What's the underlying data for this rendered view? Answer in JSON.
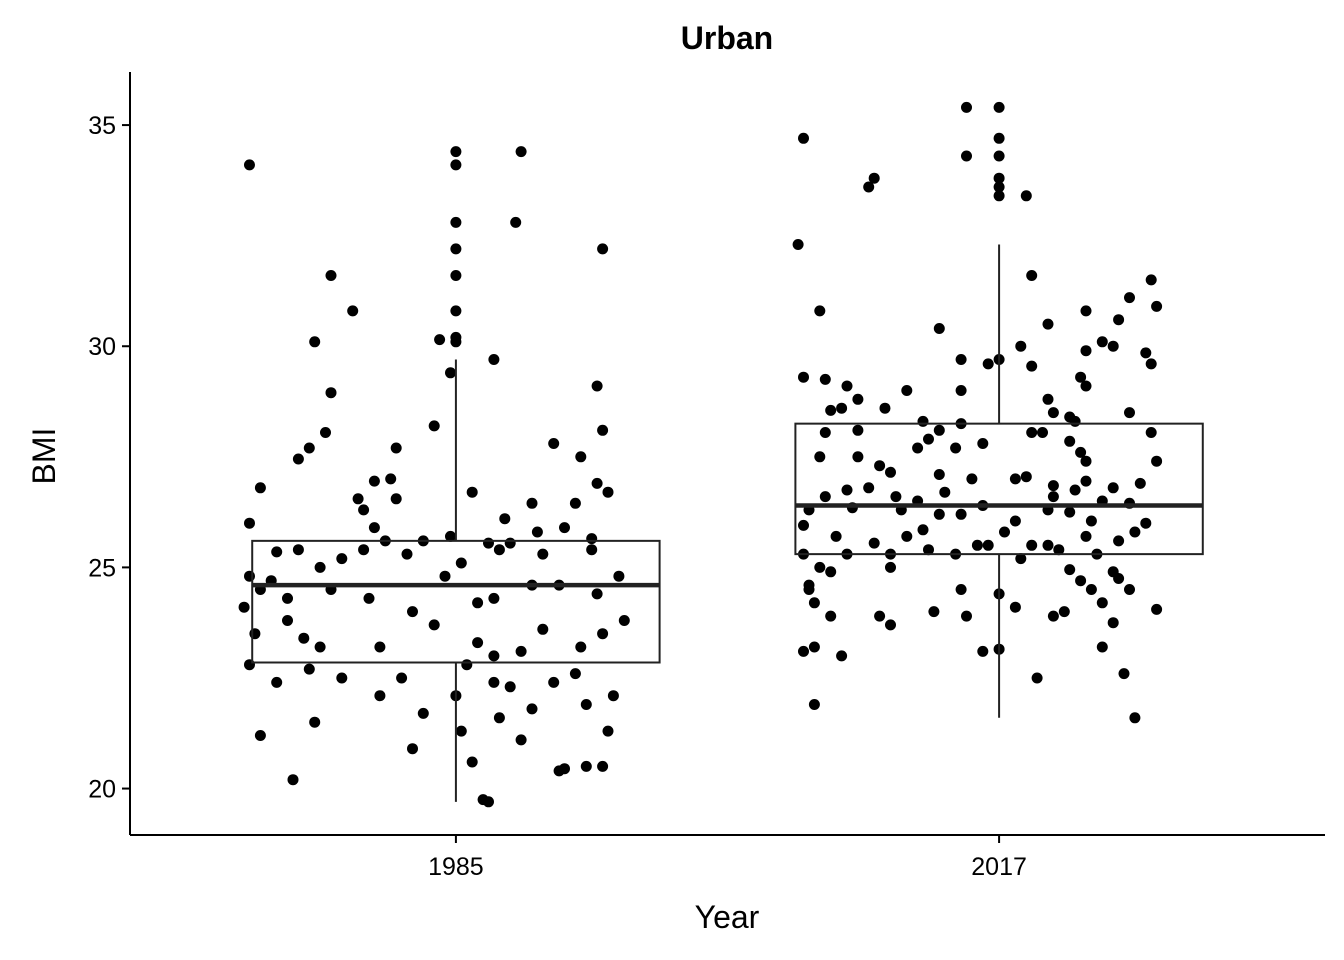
{
  "chart_data": {
    "type": "box+jitter",
    "title": "Urban",
    "xlabel": "Year",
    "ylabel": "BMI",
    "categories": [
      "1985",
      "2017"
    ],
    "ylim": [
      18.95,
      36.2
    ],
    "yticks": [
      20,
      25,
      30,
      35
    ],
    "grid": false,
    "legend": "none",
    "colors": {
      "points": "#000000",
      "box": "#222222"
    },
    "boxes": [
      {
        "category": "1985",
        "q1": 22.85,
        "median": 24.6,
        "q3": 25.6,
        "whisker_low": 19.7,
        "whisker_high": 29.7
      },
      {
        "category": "2017",
        "q1": 25.3,
        "median": 26.4,
        "q3": 28.25,
        "whisker_low": 21.6,
        "whisker_high": 32.3
      }
    ],
    "points": [
      {
        "x": 1.0,
        "y": 34.4
      },
      {
        "x": 1.0,
        "y": 34.1
      },
      {
        "x": 1.0,
        "y": 32.8
      },
      {
        "x": 1.0,
        "y": 32.2
      },
      {
        "x": 1.0,
        "y": 31.6
      },
      {
        "x": 1.0,
        "y": 30.8
      },
      {
        "x": 1.0,
        "y": 30.2
      },
      {
        "x": 1.0,
        "y": 30.1
      },
      {
        "x": 0.62,
        "y": 34.1
      },
      {
        "x": 1.12,
        "y": 34.4
      },
      {
        "x": 1.11,
        "y": 32.8
      },
      {
        "x": 1.27,
        "y": 32.2
      },
      {
        "x": 0.77,
        "y": 31.6
      },
      {
        "x": 0.81,
        "y": 30.8
      },
      {
        "x": 0.74,
        "y": 30.1
      },
      {
        "x": 0.97,
        "y": 30.15
      },
      {
        "x": 0.99,
        "y": 29.4
      },
      {
        "x": 1.07,
        "y": 29.7
      },
      {
        "x": 1.26,
        "y": 29.1
      },
      {
        "x": 0.77,
        "y": 28.95
      },
      {
        "x": 0.96,
        "y": 28.2
      },
      {
        "x": 1.27,
        "y": 28.1
      },
      {
        "x": 0.73,
        "y": 27.7
      },
      {
        "x": 0.71,
        "y": 27.45
      },
      {
        "x": 0.76,
        "y": 28.05
      },
      {
        "x": 0.89,
        "y": 27.7
      },
      {
        "x": 1.18,
        "y": 27.8
      },
      {
        "x": 1.23,
        "y": 27.5
      },
      {
        "x": 0.64,
        "y": 26.8
      },
      {
        "x": 0.85,
        "y": 26.95
      },
      {
        "x": 0.88,
        "y": 27.0
      },
      {
        "x": 1.03,
        "y": 26.7
      },
      {
        "x": 1.26,
        "y": 26.9
      },
      {
        "x": 1.28,
        "y": 26.7
      },
      {
        "x": 0.82,
        "y": 26.55
      },
      {
        "x": 0.89,
        "y": 26.55
      },
      {
        "x": 0.83,
        "y": 26.3
      },
      {
        "x": 1.09,
        "y": 26.1
      },
      {
        "x": 1.14,
        "y": 26.45
      },
      {
        "x": 1.22,
        "y": 26.45
      },
      {
        "x": 0.62,
        "y": 26.0
      },
      {
        "x": 0.85,
        "y": 25.9
      },
      {
        "x": 0.87,
        "y": 25.6
      },
      {
        "x": 0.94,
        "y": 25.6
      },
      {
        "x": 0.99,
        "y": 25.7
      },
      {
        "x": 1.06,
        "y": 25.55
      },
      {
        "x": 1.1,
        "y": 25.55
      },
      {
        "x": 1.15,
        "y": 25.8
      },
      {
        "x": 1.2,
        "y": 25.9
      },
      {
        "x": 1.25,
        "y": 25.65
      },
      {
        "x": 0.67,
        "y": 25.35
      },
      {
        "x": 0.71,
        "y": 25.4
      },
      {
        "x": 0.79,
        "y": 25.2
      },
      {
        "x": 0.83,
        "y": 25.4
      },
      {
        "x": 0.91,
        "y": 25.3
      },
      {
        "x": 1.01,
        "y": 25.1
      },
      {
        "x": 1.08,
        "y": 25.4
      },
      {
        "x": 1.16,
        "y": 25.3
      },
      {
        "x": 1.25,
        "y": 25.4
      },
      {
        "x": 0.75,
        "y": 25.0
      },
      {
        "x": 0.62,
        "y": 24.8
      },
      {
        "x": 0.64,
        "y": 24.5
      },
      {
        "x": 0.66,
        "y": 24.7
      },
      {
        "x": 0.69,
        "y": 24.3
      },
      {
        "x": 0.77,
        "y": 24.5
      },
      {
        "x": 0.84,
        "y": 24.3
      },
      {
        "x": 0.92,
        "y": 24.0
      },
      {
        "x": 0.98,
        "y": 24.8
      },
      {
        "x": 1.04,
        "y": 24.2
      },
      {
        "x": 1.07,
        "y": 24.3
      },
      {
        "x": 1.14,
        "y": 24.6
      },
      {
        "x": 1.19,
        "y": 24.6
      },
      {
        "x": 1.26,
        "y": 24.4
      },
      {
        "x": 1.3,
        "y": 24.8
      },
      {
        "x": 1.31,
        "y": 23.8
      },
      {
        "x": 0.61,
        "y": 24.1
      },
      {
        "x": 0.63,
        "y": 23.5
      },
      {
        "x": 0.69,
        "y": 23.8
      },
      {
        "x": 0.72,
        "y": 23.4
      },
      {
        "x": 0.75,
        "y": 23.2
      },
      {
        "x": 0.86,
        "y": 23.2
      },
      {
        "x": 0.96,
        "y": 23.7
      },
      {
        "x": 1.04,
        "y": 23.3
      },
      {
        "x": 1.07,
        "y": 23.0
      },
      {
        "x": 1.12,
        "y": 23.1
      },
      {
        "x": 1.16,
        "y": 23.6
      },
      {
        "x": 1.23,
        "y": 23.2
      },
      {
        "x": 1.27,
        "y": 23.5
      },
      {
        "x": 0.62,
        "y": 22.8
      },
      {
        "x": 0.67,
        "y": 22.4
      },
      {
        "x": 0.73,
        "y": 22.7
      },
      {
        "x": 0.79,
        "y": 22.5
      },
      {
        "x": 0.9,
        "y": 22.5
      },
      {
        "x": 1.0,
        "y": 22.1
      },
      {
        "x": 1.02,
        "y": 22.8
      },
      {
        "x": 1.07,
        "y": 22.4
      },
      {
        "x": 1.1,
        "y": 22.3
      },
      {
        "x": 1.18,
        "y": 22.4
      },
      {
        "x": 1.22,
        "y": 22.6
      },
      {
        "x": 1.29,
        "y": 22.1
      },
      {
        "x": 0.64,
        "y": 21.2
      },
      {
        "x": 0.74,
        "y": 21.5
      },
      {
        "x": 0.86,
        "y": 22.1
      },
      {
        "x": 0.94,
        "y": 21.7
      },
      {
        "x": 1.01,
        "y": 21.3
      },
      {
        "x": 1.08,
        "y": 21.6
      },
      {
        "x": 1.12,
        "y": 21.1
      },
      {
        "x": 1.14,
        "y": 21.8
      },
      {
        "x": 1.24,
        "y": 21.9
      },
      {
        "x": 1.28,
        "y": 21.3
      },
      {
        "x": 0.7,
        "y": 20.2
      },
      {
        "x": 0.92,
        "y": 20.9
      },
      {
        "x": 1.03,
        "y": 20.6
      },
      {
        "x": 1.19,
        "y": 20.4
      },
      {
        "x": 1.2,
        "y": 20.45
      },
      {
        "x": 1.24,
        "y": 20.5
      },
      {
        "x": 1.27,
        "y": 20.5
      },
      {
        "x": 1.05,
        "y": 19.75
      },
      {
        "x": 1.06,
        "y": 19.7
      },
      {
        "x": 2.0,
        "y": 35.4
      },
      {
        "x": 2.0,
        "y": 34.7
      },
      {
        "x": 2.0,
        "y": 34.3
      },
      {
        "x": 2.0,
        "y": 33.8
      },
      {
        "x": 2.0,
        "y": 33.6
      },
      {
        "x": 2.0,
        "y": 33.4
      },
      {
        "x": 1.94,
        "y": 35.4
      },
      {
        "x": 1.64,
        "y": 34.7
      },
      {
        "x": 1.94,
        "y": 34.3
      },
      {
        "x": 1.77,
        "y": 33.8
      },
      {
        "x": 1.76,
        "y": 33.6
      },
      {
        "x": 2.05,
        "y": 33.4
      },
      {
        "x": 1.63,
        "y": 32.3
      },
      {
        "x": 2.06,
        "y": 31.6
      },
      {
        "x": 2.28,
        "y": 31.5
      },
      {
        "x": 2.24,
        "y": 31.1
      },
      {
        "x": 2.29,
        "y": 30.9
      },
      {
        "x": 1.67,
        "y": 30.8
      },
      {
        "x": 2.16,
        "y": 30.8
      },
      {
        "x": 2.22,
        "y": 30.6
      },
      {
        "x": 2.09,
        "y": 30.5
      },
      {
        "x": 1.89,
        "y": 30.4
      },
      {
        "x": 2.19,
        "y": 30.1
      },
      {
        "x": 2.04,
        "y": 30.0
      },
      {
        "x": 2.21,
        "y": 30.0
      },
      {
        "x": 2.16,
        "y": 29.9
      },
      {
        "x": 2.27,
        "y": 29.85
      },
      {
        "x": 1.93,
        "y": 29.7
      },
      {
        "x": 2.0,
        "y": 29.7
      },
      {
        "x": 1.98,
        "y": 29.6
      },
      {
        "x": 2.06,
        "y": 29.55
      },
      {
        "x": 2.28,
        "y": 29.6
      },
      {
        "x": 1.64,
        "y": 29.3
      },
      {
        "x": 1.68,
        "y": 29.25
      },
      {
        "x": 1.72,
        "y": 29.1
      },
      {
        "x": 2.15,
        "y": 29.3
      },
      {
        "x": 2.16,
        "y": 29.1
      },
      {
        "x": 1.83,
        "y": 29.0
      },
      {
        "x": 1.93,
        "y": 29.0
      },
      {
        "x": 1.74,
        "y": 28.8
      },
      {
        "x": 1.71,
        "y": 28.6
      },
      {
        "x": 1.69,
        "y": 28.55
      },
      {
        "x": 1.79,
        "y": 28.6
      },
      {
        "x": 2.09,
        "y": 28.8
      },
      {
        "x": 2.1,
        "y": 28.5
      },
      {
        "x": 2.13,
        "y": 28.4
      },
      {
        "x": 2.24,
        "y": 28.5
      },
      {
        "x": 1.86,
        "y": 28.3
      },
      {
        "x": 1.93,
        "y": 28.25
      },
      {
        "x": 2.14,
        "y": 28.3
      },
      {
        "x": 1.68,
        "y": 28.05
      },
      {
        "x": 1.74,
        "y": 28.1
      },
      {
        "x": 1.87,
        "y": 27.9
      },
      {
        "x": 1.89,
        "y": 28.1
      },
      {
        "x": 2.08,
        "y": 28.05
      },
      {
        "x": 2.06,
        "y": 28.05
      },
      {
        "x": 2.13,
        "y": 27.85
      },
      {
        "x": 2.28,
        "y": 28.05
      },
      {
        "x": 1.74,
        "y": 27.5
      },
      {
        "x": 1.85,
        "y": 27.7
      },
      {
        "x": 1.92,
        "y": 27.7
      },
      {
        "x": 1.97,
        "y": 27.8
      },
      {
        "x": 2.15,
        "y": 27.6
      },
      {
        "x": 2.16,
        "y": 27.4
      },
      {
        "x": 2.29,
        "y": 27.4
      },
      {
        "x": 1.67,
        "y": 27.5
      },
      {
        "x": 1.78,
        "y": 27.3
      },
      {
        "x": 1.8,
        "y": 27.15
      },
      {
        "x": 1.89,
        "y": 27.1
      },
      {
        "x": 1.95,
        "y": 27.0
      },
      {
        "x": 2.03,
        "y": 27.0
      },
      {
        "x": 2.05,
        "y": 27.05
      },
      {
        "x": 2.1,
        "y": 26.85
      },
      {
        "x": 2.16,
        "y": 26.95
      },
      {
        "x": 2.21,
        "y": 26.8
      },
      {
        "x": 2.26,
        "y": 26.9
      },
      {
        "x": 1.68,
        "y": 26.6
      },
      {
        "x": 1.72,
        "y": 26.75
      },
      {
        "x": 1.76,
        "y": 26.8
      },
      {
        "x": 1.81,
        "y": 26.6
      },
      {
        "x": 1.85,
        "y": 26.5
      },
      {
        "x": 1.9,
        "y": 26.7
      },
      {
        "x": 1.97,
        "y": 26.4
      },
      {
        "x": 2.1,
        "y": 26.6
      },
      {
        "x": 2.14,
        "y": 26.75
      },
      {
        "x": 2.19,
        "y": 26.5
      },
      {
        "x": 2.24,
        "y": 26.45
      },
      {
        "x": 1.65,
        "y": 26.3
      },
      {
        "x": 1.73,
        "y": 26.35
      },
      {
        "x": 1.82,
        "y": 26.3
      },
      {
        "x": 1.89,
        "y": 26.2
      },
      {
        "x": 1.93,
        "y": 26.2
      },
      {
        "x": 2.03,
        "y": 26.05
      },
      {
        "x": 2.09,
        "y": 26.3
      },
      {
        "x": 2.13,
        "y": 26.25
      },
      {
        "x": 2.17,
        "y": 26.05
      },
      {
        "x": 2.27,
        "y": 26.0
      },
      {
        "x": 1.64,
        "y": 25.95
      },
      {
        "x": 1.7,
        "y": 25.7
      },
      {
        "x": 1.77,
        "y": 25.55
      },
      {
        "x": 1.83,
        "y": 25.7
      },
      {
        "x": 1.86,
        "y": 25.85
      },
      {
        "x": 1.98,
        "y": 25.5
      },
      {
        "x": 2.01,
        "y": 25.8
      },
      {
        "x": 2.06,
        "y": 25.5
      },
      {
        "x": 2.09,
        "y": 25.5
      },
      {
        "x": 2.16,
        "y": 25.7
      },
      {
        "x": 2.25,
        "y": 25.8
      },
      {
        "x": 1.64,
        "y": 25.3
      },
      {
        "x": 1.72,
        "y": 25.3
      },
      {
        "x": 1.8,
        "y": 25.3
      },
      {
        "x": 1.87,
        "y": 25.4
      },
      {
        "x": 1.92,
        "y": 25.3
      },
      {
        "x": 1.96,
        "y": 25.5
      },
      {
        "x": 2.04,
        "y": 25.2
      },
      {
        "x": 2.11,
        "y": 25.4
      },
      {
        "x": 2.18,
        "y": 25.3
      },
      {
        "x": 2.22,
        "y": 25.6
      },
      {
        "x": 1.67,
        "y": 25.0
      },
      {
        "x": 1.69,
        "y": 24.9
      },
      {
        "x": 1.8,
        "y": 25.0
      },
      {
        "x": 2.13,
        "y": 24.95
      },
      {
        "x": 2.15,
        "y": 24.7
      },
      {
        "x": 2.21,
        "y": 24.9
      },
      {
        "x": 1.65,
        "y": 24.6
      },
      {
        "x": 1.65,
        "y": 24.5
      },
      {
        "x": 1.93,
        "y": 24.5
      },
      {
        "x": 2.0,
        "y": 24.4
      },
      {
        "x": 2.17,
        "y": 24.5
      },
      {
        "x": 2.22,
        "y": 24.75
      },
      {
        "x": 2.24,
        "y": 24.5
      },
      {
        "x": 1.66,
        "y": 24.2
      },
      {
        "x": 1.69,
        "y": 23.9
      },
      {
        "x": 1.78,
        "y": 23.9
      },
      {
        "x": 1.88,
        "y": 24.0
      },
      {
        "x": 1.94,
        "y": 23.9
      },
      {
        "x": 2.03,
        "y": 24.1
      },
      {
        "x": 2.1,
        "y": 23.9
      },
      {
        "x": 2.12,
        "y": 24.0
      },
      {
        "x": 2.19,
        "y": 24.2
      },
      {
        "x": 2.29,
        "y": 24.05
      },
      {
        "x": 1.8,
        "y": 23.7
      },
      {
        "x": 2.21,
        "y": 23.75
      },
      {
        "x": 1.64,
        "y": 23.1
      },
      {
        "x": 1.66,
        "y": 23.2
      },
      {
        "x": 1.71,
        "y": 23.0
      },
      {
        "x": 1.97,
        "y": 23.1
      },
      {
        "x": 2.0,
        "y": 23.15
      },
      {
        "x": 2.19,
        "y": 23.2
      },
      {
        "x": 2.07,
        "y": 22.5
      },
      {
        "x": 2.23,
        "y": 22.6
      },
      {
        "x": 1.66,
        "y": 21.9
      },
      {
        "x": 2.25,
        "y": 21.6
      }
    ]
  }
}
